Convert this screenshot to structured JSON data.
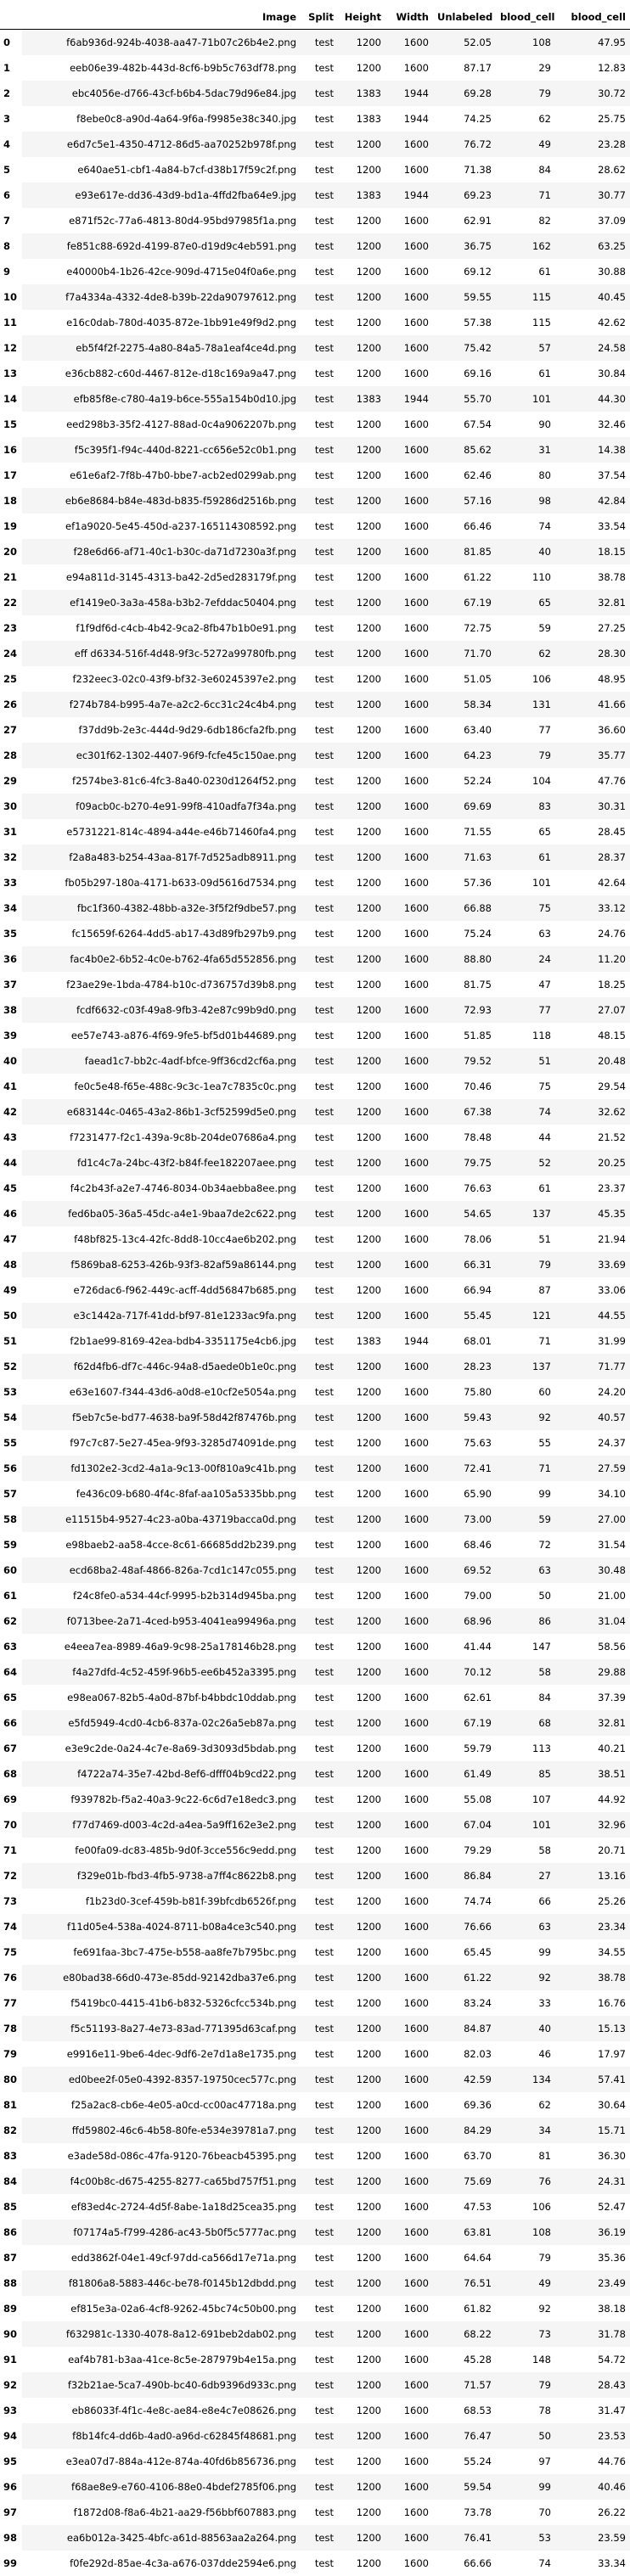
{
  "columns": [
    "Image",
    "Split",
    "Height",
    "Width",
    "Unlabeled",
    "blood_cell",
    "blood_cell"
  ],
  "rows": [
    [
      "0",
      "f6ab936d-924b-4038-aa47-71b07c26b4e2.png",
      "test",
      "1200",
      "1600",
      "52.05",
      "108",
      "47.95"
    ],
    [
      "1",
      "eeb06e39-482b-443d-8cf6-b9b5c763df78.png",
      "test",
      "1200",
      "1600",
      "87.17",
      "29",
      "12.83"
    ],
    [
      "2",
      "ebc4056e-d766-43cf-b6b4-5dac79d96e84.jpg",
      "test",
      "1383",
      "1944",
      "69.28",
      "79",
      "30.72"
    ],
    [
      "3",
      "f8ebe0c8-a90d-4a64-9f6a-f9985e38c340.jpg",
      "test",
      "1383",
      "1944",
      "74.25",
      "62",
      "25.75"
    ],
    [
      "4",
      "e6d7c5e1-4350-4712-86d5-aa70252b978f.png",
      "test",
      "1200",
      "1600",
      "76.72",
      "49",
      "23.28"
    ],
    [
      "5",
      "e640ae51-cbf1-4a84-b7cf-d38b17f59c2f.png",
      "test",
      "1200",
      "1600",
      "71.38",
      "84",
      "28.62"
    ],
    [
      "6",
      "e93e617e-dd36-43d9-bd1a-4ffd2fba64e9.jpg",
      "test",
      "1383",
      "1944",
      "69.23",
      "71",
      "30.77"
    ],
    [
      "7",
      "e871f52c-77a6-4813-80d4-95bd97985f1a.png",
      "test",
      "1200",
      "1600",
      "62.91",
      "82",
      "37.09"
    ],
    [
      "8",
      "fe851c88-692d-4199-87e0-d19d9c4eb591.png",
      "test",
      "1200",
      "1600",
      "36.75",
      "162",
      "63.25"
    ],
    [
      "9",
      "e40000b4-1b26-42ce-909d-4715e04f0a6e.png",
      "test",
      "1200",
      "1600",
      "69.12",
      "61",
      "30.88"
    ],
    [
      "10",
      "f7a4334a-4332-4de8-b39b-22da90797612.png",
      "test",
      "1200",
      "1600",
      "59.55",
      "115",
      "40.45"
    ],
    [
      "11",
      "e16c0dab-780d-4035-872e-1bb91e49f9d2.png",
      "test",
      "1200",
      "1600",
      "57.38",
      "115",
      "42.62"
    ],
    [
      "12",
      "eb5f4f2f-2275-4a80-84a5-78a1eaf4ce4d.png",
      "test",
      "1200",
      "1600",
      "75.42",
      "57",
      "24.58"
    ],
    [
      "13",
      "e36cb882-c60d-4467-812e-d18c169a9a47.png",
      "test",
      "1200",
      "1600",
      "69.16",
      "61",
      "30.84"
    ],
    [
      "14",
      "efb85f8e-c780-4a19-b6ce-555a154b0d10.jpg",
      "test",
      "1383",
      "1944",
      "55.70",
      "101",
      "44.30"
    ],
    [
      "15",
      "eed298b3-35f2-4127-88ad-0c4a9062207b.png",
      "test",
      "1200",
      "1600",
      "67.54",
      "90",
      "32.46"
    ],
    [
      "16",
      "f5c395f1-f94c-440d-8221-cc656e52c0b1.png",
      "test",
      "1200",
      "1600",
      "85.62",
      "31",
      "14.38"
    ],
    [
      "17",
      "e61e6af2-7f8b-47b0-bbe7-acb2ed0299ab.png",
      "test",
      "1200",
      "1600",
      "62.46",
      "80",
      "37.54"
    ],
    [
      "18",
      "eb6e8684-b84e-483d-b835-f59286d2516b.png",
      "test",
      "1200",
      "1600",
      "57.16",
      "98",
      "42.84"
    ],
    [
      "19",
      "ef1a9020-5e45-450d-a237-165114308592.png",
      "test",
      "1200",
      "1600",
      "66.46",
      "74",
      "33.54"
    ],
    [
      "20",
      "f28e6d66-af71-40c1-b30c-da71d7230a3f.png",
      "test",
      "1200",
      "1600",
      "81.85",
      "40",
      "18.15"
    ],
    [
      "21",
      "e94a811d-3145-4313-ba42-2d5ed283179f.png",
      "test",
      "1200",
      "1600",
      "61.22",
      "110",
      "38.78"
    ],
    [
      "22",
      "ef1419e0-3a3a-458a-b3b2-7efddac50404.png",
      "test",
      "1200",
      "1600",
      "67.19",
      "65",
      "32.81"
    ],
    [
      "23",
      "f1f9df6d-c4cb-4b42-9ca2-8fb47b1b0e91.png",
      "test",
      "1200",
      "1600",
      "72.75",
      "59",
      "27.25"
    ],
    [
      "24",
      "eff d6334-516f-4d48-9f3c-5272a99780fb.png",
      "test",
      "1200",
      "1600",
      "71.70",
      "62",
      "28.30"
    ],
    [
      "25",
      "f232eec3-02c0-43f9-bf32-3e60245397e2.png",
      "test",
      "1200",
      "1600",
      "51.05",
      "106",
      "48.95"
    ],
    [
      "26",
      "f274b784-b995-4a7e-a2c2-6cc31c24c4b4.png",
      "test",
      "1200",
      "1600",
      "58.34",
      "131",
      "41.66"
    ],
    [
      "27",
      "f37dd9b-2e3c-444d-9d29-6db186cfa2fb.png",
      "test",
      "1200",
      "1600",
      "63.40",
      "77",
      "36.60"
    ],
    [
      "28",
      "ec301f62-1302-4407-96f9-fcfe45c150ae.png",
      "test",
      "1200",
      "1600",
      "64.23",
      "79",
      "35.77"
    ],
    [
      "29",
      "f2574be3-81c6-4fc3-8a40-0230d1264f52.png",
      "test",
      "1200",
      "1600",
      "52.24",
      "104",
      "47.76"
    ],
    [
      "30",
      "f09acb0c-b270-4e91-99f8-410adfa7f34a.png",
      "test",
      "1200",
      "1600",
      "69.69",
      "83",
      "30.31"
    ],
    [
      "31",
      "e5731221-814c-4894-a44e-e46b71460fa4.png",
      "test",
      "1200",
      "1600",
      "71.55",
      "65",
      "28.45"
    ],
    [
      "32",
      "f2a8a483-b254-43aa-817f-7d525adb8911.png",
      "test",
      "1200",
      "1600",
      "71.63",
      "61",
      "28.37"
    ],
    [
      "33",
      "fb05b297-180a-4171-b633-09d5616d7534.png",
      "test",
      "1200",
      "1600",
      "57.36",
      "101",
      "42.64"
    ],
    [
      "34",
      "fbc1f360-4382-48bb-a32e-3f5f2f9dbe57.png",
      "test",
      "1200",
      "1600",
      "66.88",
      "75",
      "33.12"
    ],
    [
      "35",
      "fc15659f-6264-4dd5-ab17-43d89fb297b9.png",
      "test",
      "1200",
      "1600",
      "75.24",
      "63",
      "24.76"
    ],
    [
      "36",
      "fac4b0e2-6b52-4c0e-b762-4fa65d552856.png",
      "test",
      "1200",
      "1600",
      "88.80",
      "24",
      "11.20"
    ],
    [
      "37",
      "f23ae29e-1bda-4784-b10c-d736757d39b8.png",
      "test",
      "1200",
      "1600",
      "81.75",
      "47",
      "18.25"
    ],
    [
      "38",
      "fcdf6632-c03f-49a8-9fb3-42e87c99b9d0.png",
      "test",
      "1200",
      "1600",
      "72.93",
      "77",
      "27.07"
    ],
    [
      "39",
      "ee57e743-a876-4f69-9fe5-bf5d01b44689.png",
      "test",
      "1200",
      "1600",
      "51.85",
      "118",
      "48.15"
    ],
    [
      "40",
      "faead1c7-bb2c-4adf-bfce-9ff36cd2cf6a.png",
      "test",
      "1200",
      "1600",
      "79.52",
      "51",
      "20.48"
    ],
    [
      "41",
      "fe0c5e48-f65e-488c-9c3c-1ea7c7835c0c.png",
      "test",
      "1200",
      "1600",
      "70.46",
      "75",
      "29.54"
    ],
    [
      "42",
      "e683144c-0465-43a2-86b1-3cf52599d5e0.png",
      "test",
      "1200",
      "1600",
      "67.38",
      "74",
      "32.62"
    ],
    [
      "43",
      "f7231477-f2c1-439a-9c8b-204de07686a4.png",
      "test",
      "1200",
      "1600",
      "78.48",
      "44",
      "21.52"
    ],
    [
      "44",
      "fd1c4c7a-24bc-43f2-b84f-fee182207aee.png",
      "test",
      "1200",
      "1600",
      "79.75",
      "52",
      "20.25"
    ],
    [
      "45",
      "f4c2b43f-a2e7-4746-8034-0b34aebba8ee.png",
      "test",
      "1200",
      "1600",
      "76.63",
      "61",
      "23.37"
    ],
    [
      "46",
      "fed6ba05-36a5-45dc-a4e1-9baa7de2c622.png",
      "test",
      "1200",
      "1600",
      "54.65",
      "137",
      "45.35"
    ],
    [
      "47",
      "f48bf825-13c4-42fc-8dd8-10cc4ae6b202.png",
      "test",
      "1200",
      "1600",
      "78.06",
      "51",
      "21.94"
    ],
    [
      "48",
      "f5869ba8-6253-426b-93f3-82af59a86144.png",
      "test",
      "1200",
      "1600",
      "66.31",
      "79",
      "33.69"
    ],
    [
      "49",
      "e726dac6-f962-449c-acff-4dd56847b685.png",
      "test",
      "1200",
      "1600",
      "66.94",
      "87",
      "33.06"
    ],
    [
      "50",
      "e3c1442a-717f-41dd-bf97-81e1233ac9fa.png",
      "test",
      "1200",
      "1600",
      "55.45",
      "121",
      "44.55"
    ],
    [
      "51",
      "f2b1ae99-8169-42ea-bdb4-3351175e4cb6.jpg",
      "test",
      "1383",
      "1944",
      "68.01",
      "71",
      "31.99"
    ],
    [
      "52",
      "f62d4fb6-df7c-446c-94a8-d5aede0b1e0c.png",
      "test",
      "1200",
      "1600",
      "28.23",
      "137",
      "71.77"
    ],
    [
      "53",
      "e63e1607-f344-43d6-a0d8-e10cf2e5054a.png",
      "test",
      "1200",
      "1600",
      "75.80",
      "60",
      "24.20"
    ],
    [
      "54",
      "f5eb7c5e-bd77-4638-ba9f-58d42f87476b.png",
      "test",
      "1200",
      "1600",
      "59.43",
      "92",
      "40.57"
    ],
    [
      "55",
      "f97c7c87-5e27-45ea-9f93-3285d74091de.png",
      "test",
      "1200",
      "1600",
      "75.63",
      "55",
      "24.37"
    ],
    [
      "56",
      "fd1302e2-3cd2-4a1a-9c13-00f810a9c41b.png",
      "test",
      "1200",
      "1600",
      "72.41",
      "71",
      "27.59"
    ],
    [
      "57",
      "fe436c09-b680-4f4c-8faf-aa105a5335bb.png",
      "test",
      "1200",
      "1600",
      "65.90",
      "99",
      "34.10"
    ],
    [
      "58",
      "e11515b4-9527-4c23-a0ba-43719bacca0d.png",
      "test",
      "1200",
      "1600",
      "73.00",
      "59",
      "27.00"
    ],
    [
      "59",
      "e98baeb2-aa58-4cce-8c61-66685dd2b239.png",
      "test",
      "1200",
      "1600",
      "68.46",
      "72",
      "31.54"
    ],
    [
      "60",
      "ecd68ba2-48af-4866-826a-7cd1c147c055.png",
      "test",
      "1200",
      "1600",
      "69.52",
      "63",
      "30.48"
    ],
    [
      "61",
      "f24c8fe0-a534-44cf-9995-b2b314d945ba.png",
      "test",
      "1200",
      "1600",
      "79.00",
      "50",
      "21.00"
    ],
    [
      "62",
      "f0713bee-2a71-4ced-b953-4041ea99496a.png",
      "test",
      "1200",
      "1600",
      "68.96",
      "86",
      "31.04"
    ],
    [
      "63",
      "e4eea7ea-8989-46a9-9c98-25a178146b28.png",
      "test",
      "1200",
      "1600",
      "41.44",
      "147",
      "58.56"
    ],
    [
      "64",
      "f4a27dfd-4c52-459f-96b5-ee6b452a3395.png",
      "test",
      "1200",
      "1600",
      "70.12",
      "58",
      "29.88"
    ],
    [
      "65",
      "e98ea067-82b5-4a0d-87bf-b4bbdc10ddab.png",
      "test",
      "1200",
      "1600",
      "62.61",
      "84",
      "37.39"
    ],
    [
      "66",
      "e5fd5949-4cd0-4cb6-837a-02c26a5eb87a.png",
      "test",
      "1200",
      "1600",
      "67.19",
      "68",
      "32.81"
    ],
    [
      "67",
      "e3e9c2de-0a24-4c7e-8a69-3d3093d5bdab.png",
      "test",
      "1200",
      "1600",
      "59.79",
      "113",
      "40.21"
    ],
    [
      "68",
      "f4722a74-35e7-42bd-8ef6-dfff04b9cd22.png",
      "test",
      "1200",
      "1600",
      "61.49",
      "85",
      "38.51"
    ],
    [
      "69",
      "f939782b-f5a2-40a3-9c22-6c6d7e18edc3.png",
      "test",
      "1200",
      "1600",
      "55.08",
      "107",
      "44.92"
    ],
    [
      "70",
      "f77d7469-d003-4c2d-a4ea-5a9ff162e3e2.png",
      "test",
      "1200",
      "1600",
      "67.04",
      "101",
      "32.96"
    ],
    [
      "71",
      "fe00fa09-dc83-485b-9d0f-3cce556c9edd.png",
      "test",
      "1200",
      "1600",
      "79.29",
      "58",
      "20.71"
    ],
    [
      "72",
      "f329e01b-fbd3-4fb5-9738-a7ff4c8622b8.png",
      "test",
      "1200",
      "1600",
      "86.84",
      "27",
      "13.16"
    ],
    [
      "73",
      "f1b23d0-3cef-459b-b81f-39bfcdb6526f.png",
      "test",
      "1200",
      "1600",
      "74.74",
      "66",
      "25.26"
    ],
    [
      "74",
      "f11d05e4-538a-4024-8711-b08a4ce3c540.png",
      "test",
      "1200",
      "1600",
      "76.66",
      "63",
      "23.34"
    ],
    [
      "75",
      "fe691faa-3bc7-475e-b558-aa8fe7b795bc.png",
      "test",
      "1200",
      "1600",
      "65.45",
      "99",
      "34.55"
    ],
    [
      "76",
      "e80bad38-66d0-473e-85dd-92142dba37e6.png",
      "test",
      "1200",
      "1600",
      "61.22",
      "92",
      "38.78"
    ],
    [
      "77",
      "f5419bc0-4415-41b6-b832-5326cfcc534b.png",
      "test",
      "1200",
      "1600",
      "83.24",
      "33",
      "16.76"
    ],
    [
      "78",
      "f5c51193-8a27-4e73-83ad-771395d63caf.png",
      "test",
      "1200",
      "1600",
      "84.87",
      "40",
      "15.13"
    ],
    [
      "79",
      "e9916e11-9be6-4dec-9df6-2e7d1a8e1735.png",
      "test",
      "1200",
      "1600",
      "82.03",
      "46",
      "17.97"
    ],
    [
      "80",
      "ed0bee2f-05e0-4392-8357-19750cec577c.png",
      "test",
      "1200",
      "1600",
      "42.59",
      "134",
      "57.41"
    ],
    [
      "81",
      "f25a2ac8-cb6e-4e05-a0cd-cc00ac47718a.png",
      "test",
      "1200",
      "1600",
      "69.36",
      "62",
      "30.64"
    ],
    [
      "82",
      "ffd59802-46c6-4b58-80fe-e534e39781a7.png",
      "test",
      "1200",
      "1600",
      "84.29",
      "34",
      "15.71"
    ],
    [
      "83",
      "e3ade58d-086c-47fa-9120-76beacb45395.png",
      "test",
      "1200",
      "1600",
      "63.70",
      "81",
      "36.30"
    ],
    [
      "84",
      "f4c00b8c-d675-4255-8277-ca65bd757f51.png",
      "test",
      "1200",
      "1600",
      "75.69",
      "76",
      "24.31"
    ],
    [
      "85",
      "ef83ed4c-2724-4d5f-8abe-1a18d25cea35.png",
      "test",
      "1200",
      "1600",
      "47.53",
      "106",
      "52.47"
    ],
    [
      "86",
      "f07174a5-f799-4286-ac43-5b0f5c5777ac.png",
      "test",
      "1200",
      "1600",
      "63.81",
      "108",
      "36.19"
    ],
    [
      "87",
      "edd3862f-04e1-49cf-97dd-ca566d17e71a.png",
      "test",
      "1200",
      "1600",
      "64.64",
      "79",
      "35.36"
    ],
    [
      "88",
      "f81806a8-5883-446c-be78-f0145b12dbdd.png",
      "test",
      "1200",
      "1600",
      "76.51",
      "49",
      "23.49"
    ],
    [
      "89",
      "ef815e3a-02a6-4cf8-9262-45bc74c50b00.png",
      "test",
      "1200",
      "1600",
      "61.82",
      "92",
      "38.18"
    ],
    [
      "90",
      "f632981c-1330-4078-8a12-691beb2dab02.png",
      "test",
      "1200",
      "1600",
      "68.22",
      "73",
      "31.78"
    ],
    [
      "91",
      "eaf4b781-b3aa-41ce-8c5e-287979b4e15a.png",
      "test",
      "1200",
      "1600",
      "45.28",
      "148",
      "54.72"
    ],
    [
      "92",
      "f32b21ae-5ca7-490b-bc40-6db9396d933c.png",
      "test",
      "1200",
      "1600",
      "71.57",
      "79",
      "28.43"
    ],
    [
      "93",
      "eb86033f-4f1c-4e8c-ae84-e8e4c7e08626.png",
      "test",
      "1200",
      "1600",
      "68.53",
      "78",
      "31.47"
    ],
    [
      "94",
      "f8b14fc4-dd6b-4ad0-a96d-c62845f48681.png",
      "test",
      "1200",
      "1600",
      "76.47",
      "50",
      "23.53"
    ],
    [
      "95",
      "e3ea07d7-884a-412e-874a-40fd6b856736.png",
      "test",
      "1200",
      "1600",
      "55.24",
      "97",
      "44.76"
    ],
    [
      "96",
      "f68ae8e9-e760-4106-88e0-4bdef2785f06.png",
      "test",
      "1200",
      "1600",
      "59.54",
      "99",
      "40.46"
    ],
    [
      "97",
      "f1872d08-f8a6-4b21-aa29-f56bbf607883.png",
      "test",
      "1200",
      "1600",
      "73.78",
      "70",
      "26.22"
    ],
    [
      "98",
      "ea6b012a-3425-4bfc-a61d-88563aa2a264.png",
      "test",
      "1200",
      "1600",
      "76.41",
      "53",
      "23.59"
    ],
    [
      "99",
      "f0fe292d-85ae-4c3a-a676-037dde2594e6.png",
      "test",
      "1200",
      "1600",
      "66.66",
      "74",
      "33.34"
    ]
  ]
}
